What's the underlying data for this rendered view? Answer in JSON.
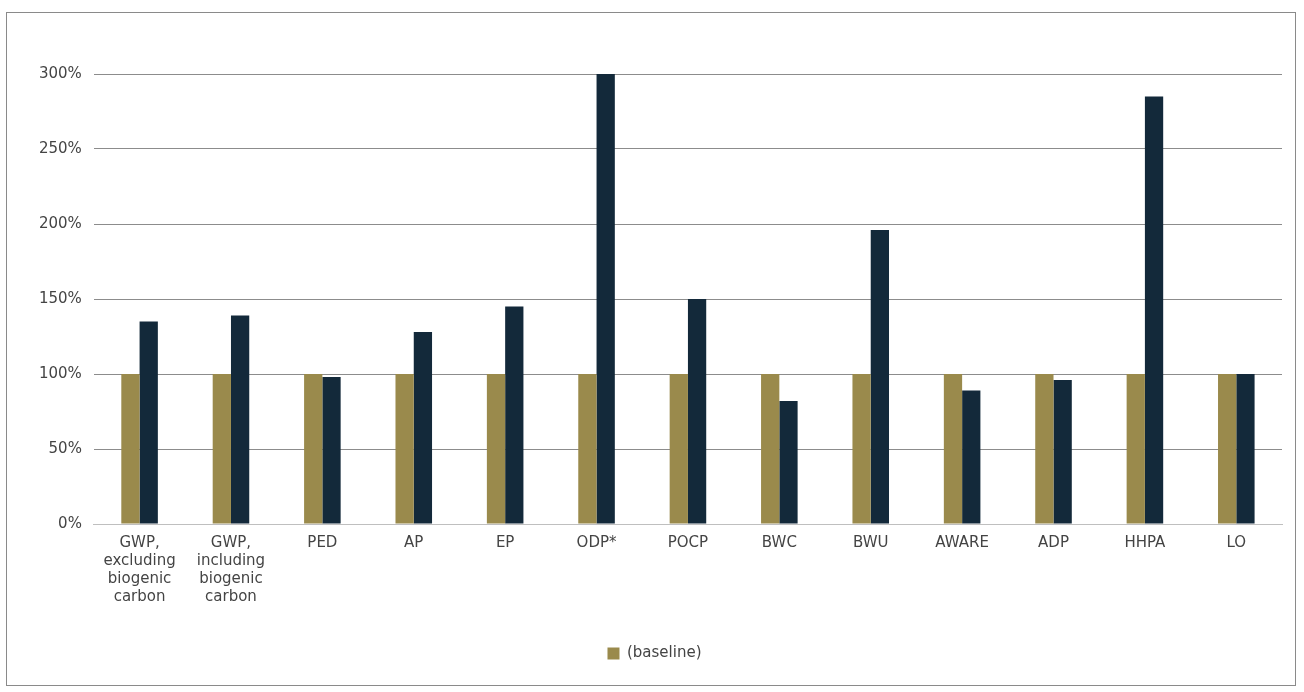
{
  "chart_data": {
    "type": "bar",
    "categories": [
      "GWP, excluding biogenic carbon",
      "GWP, including biogenic carbon",
      "PED",
      "AP",
      "EP",
      "ODP*",
      "POCP",
      "BWC",
      "BWU",
      "AWARE",
      "ADP",
      "HHPA",
      "LO"
    ],
    "series": [
      {
        "name": "(baseline)",
        "color": "#9a8a4c",
        "values": [
          100,
          100,
          100,
          100,
          100,
          100,
          100,
          100,
          100,
          100,
          100,
          100,
          100
        ]
      },
      {
        "color": "#13293a",
        "values": [
          135,
          139,
          98,
          128,
          145,
          300,
          150,
          82,
          196,
          89,
          96,
          285,
          100
        ]
      }
    ],
    "ylim": [
      0,
      300
    ],
    "yticks": [
      {
        "value": 0,
        "label": "0%"
      },
      {
        "value": 50,
        "label": "50%"
      },
      {
        "value": 100,
        "label": "100%"
      },
      {
        "value": 150,
        "label": "150%"
      },
      {
        "value": 200,
        "label": "200%"
      },
      {
        "value": 250,
        "label": "250%"
      },
      {
        "value": 300,
        "label": "300%"
      }
    ],
    "grid": "y",
    "legend": "bottom"
  }
}
